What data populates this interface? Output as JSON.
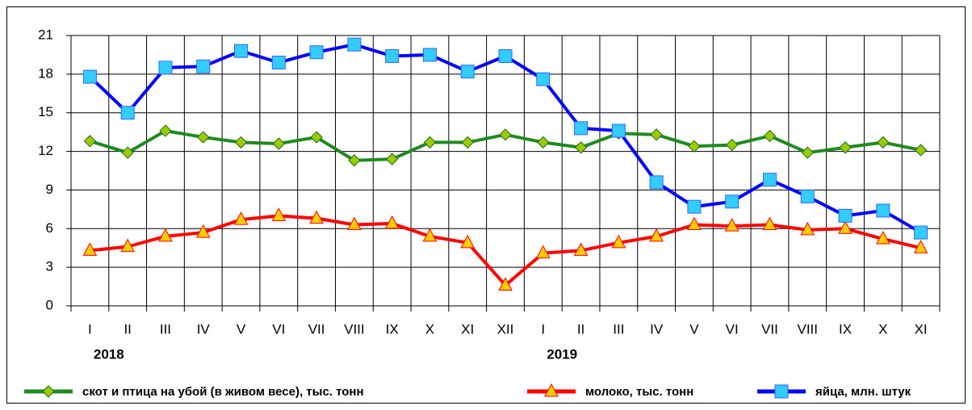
{
  "chart_data": {
    "type": "line",
    "categories": [
      "I",
      "II",
      "III",
      "IV",
      "V",
      "VI",
      "VII",
      "VIII",
      "IX",
      "X",
      "XI",
      "XII",
      "I",
      "II",
      "III",
      "IV",
      "V",
      "VI",
      "VII",
      "VIII",
      "IX",
      "X",
      "XI"
    ],
    "year_labels": [
      "2018",
      "2019"
    ],
    "series": [
      {
        "name": "скот и птица на убой (в живом весе), тыс. тонн",
        "color": "#1f8a1f",
        "marker": "diamond",
        "marker_color": "#99cc00",
        "values": [
          12.8,
          11.9,
          13.6,
          13.1,
          12.7,
          12.6,
          13.1,
          11.3,
          11.4,
          12.7,
          12.7,
          13.3,
          12.7,
          12.3,
          13.4,
          13.3,
          12.4,
          12.5,
          13.2,
          11.9,
          12.3,
          12.7,
          12.1
        ]
      },
      {
        "name": "молоко, тыс. тонн",
        "color": "#ff0000",
        "marker": "triangle",
        "marker_color": "#ffcc00",
        "values": [
          4.3,
          4.6,
          5.4,
          5.7,
          6.7,
          7.0,
          6.8,
          6.3,
          6.4,
          5.4,
          4.9,
          1.6,
          4.1,
          4.3,
          4.9,
          5.4,
          6.3,
          6.2,
          6.3,
          5.9,
          6.0,
          5.2,
          4.5
        ]
      },
      {
        "name": "яйца, млн. штук",
        "color": "#0000ff",
        "marker": "square",
        "marker_color": "#33ccff",
        "values": [
          17.8,
          15.0,
          18.5,
          18.6,
          19.8,
          18.9,
          19.7,
          20.3,
          19.4,
          19.5,
          18.2,
          19.4,
          17.6,
          13.8,
          13.6,
          9.6,
          7.7,
          8.1,
          9.8,
          8.5,
          7.0,
          7.4,
          5.7
        ]
      }
    ],
    "ylim": [
      0,
      21
    ],
    "yticks": [
      0,
      3,
      6,
      9,
      12,
      15,
      18,
      21
    ],
    "grid": true,
    "legend": "bottom"
  }
}
